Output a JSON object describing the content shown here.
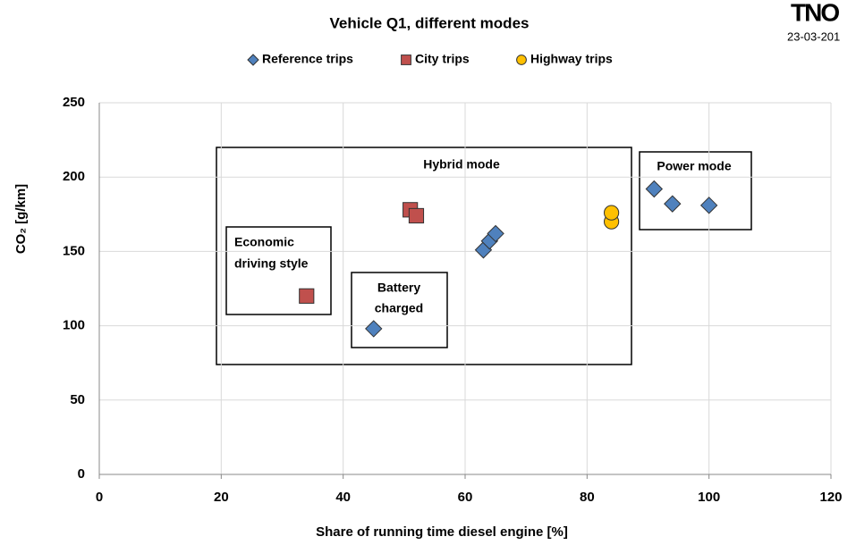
{
  "logo": "TNO",
  "date": "23-03-201",
  "chart_data": {
    "type": "scatter",
    "title": "Vehicle Q1, different modes",
    "xlabel": "Share of running time diesel engine [%]",
    "ylabel": "CO₂ [g/km]",
    "xlim": [
      0,
      120
    ],
    "xticks": [
      0,
      20,
      40,
      60,
      80,
      100,
      120
    ],
    "ylim": [
      0,
      250
    ],
    "yticks": [
      0,
      50,
      100,
      150,
      200,
      250
    ],
    "grid": true,
    "legend": "top",
    "series": [
      {
        "name": "Reference trips",
        "color": "#4f81bd",
        "marker": "diamond",
        "x": [
          45,
          63,
          64,
          65,
          91,
          94,
          100
        ],
        "values": [
          98,
          151,
          157,
          162,
          192,
          182,
          181
        ]
      },
      {
        "name": "City trips",
        "color": "#c0504d",
        "marker": "square",
        "x": [
          34,
          51,
          52
        ],
        "values": [
          120,
          178,
          174
        ]
      },
      {
        "name": "Highway trips",
        "color": "#ffc000",
        "marker": "circle",
        "x": [
          84,
          84
        ],
        "values": [
          170,
          176
        ]
      }
    ],
    "annotations": [
      [
        "Hybrid mode"
      ],
      [
        "Power mode"
      ],
      [
        "Economic",
        "driving style"
      ],
      [
        "Battery",
        "charged"
      ]
    ]
  }
}
